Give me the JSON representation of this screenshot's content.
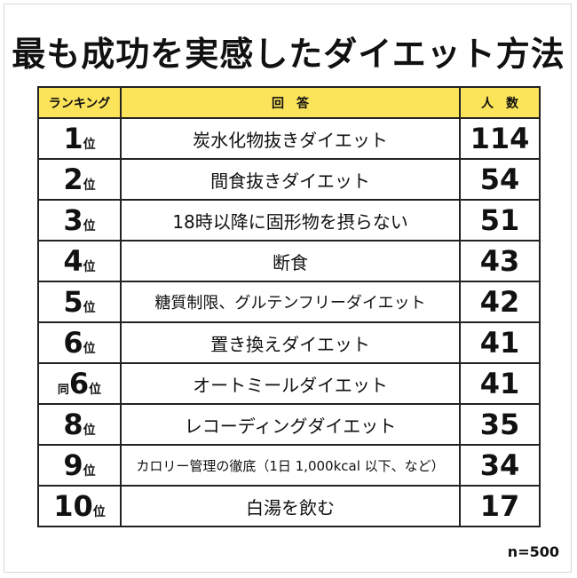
{
  "title": "最も成功を実感したダイエット方法",
  "header": {
    "rank": "ランキング",
    "answer": "回　答",
    "count": "人　数"
  },
  "note": "n=500",
  "colors": {
    "header_bg": "#fbe35a",
    "border": "#222222"
  },
  "chart_data": {
    "type": "table",
    "title": "最も成功を実感したダイエット方法",
    "columns": [
      "ランキング",
      "回　答",
      "人　数"
    ],
    "rows": [
      {
        "rank": "1",
        "suffix": "位",
        "prefix": "",
        "answer": "炭水化物抜きダイエット",
        "count": 114
      },
      {
        "rank": "2",
        "suffix": "位",
        "prefix": "",
        "answer": "間食抜きダイエット",
        "count": 54
      },
      {
        "rank": "3",
        "suffix": "位",
        "prefix": "",
        "answer": "18時以降に固形物を摂らない",
        "count": 51
      },
      {
        "rank": "4",
        "suffix": "位",
        "prefix": "",
        "answer": "断食",
        "count": 43
      },
      {
        "rank": "5",
        "suffix": "位",
        "prefix": "",
        "answer": "糖質制限、グルテンフリーダイエット",
        "count": 42
      },
      {
        "rank": "6",
        "suffix": "位",
        "prefix": "",
        "answer": "置き換えダイエット",
        "count": 41
      },
      {
        "rank": "6",
        "suffix": "位",
        "prefix": "同",
        "answer": "オートミールダイエット",
        "count": 41
      },
      {
        "rank": "8",
        "suffix": "位",
        "prefix": "",
        "answer": "レコーディングダイエット",
        "count": 35
      },
      {
        "rank": "9",
        "suffix": "位",
        "prefix": "",
        "answer": "カロリー管理の徹底（1日 1,000kcal 以下、など）",
        "count": 34
      },
      {
        "rank": "10",
        "suffix": "位",
        "prefix": "",
        "answer": "白湯を飲む",
        "count": 17
      }
    ],
    "sample_size": "n=500"
  }
}
